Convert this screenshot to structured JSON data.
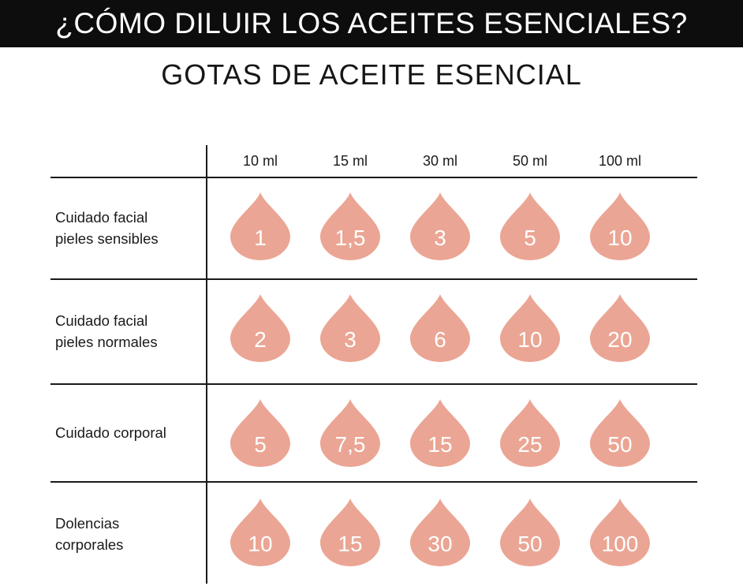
{
  "title": "¿CÓMO DILUIR LOS ACEITES ESENCIALES?",
  "subtitle": "GOTAS DE ACEITE ESENCIAL",
  "colors": {
    "drop": "#eba594",
    "header_bg": "#0d0d0d",
    "lines": "#1a1a1a"
  },
  "chart_data": {
    "type": "table",
    "columns": [
      "10 ml",
      "15 ml",
      "30 ml",
      "50 ml",
      "100 ml"
    ],
    "rows": [
      {
        "label_lines": [
          "Cuidado facial",
          "pieles sensibles"
        ],
        "values": [
          "1",
          "1,5",
          "3",
          "5",
          "10"
        ]
      },
      {
        "label_lines": [
          "Cuidado facial",
          "pieles normales"
        ],
        "values": [
          "2",
          "3",
          "6",
          "10",
          "20"
        ]
      },
      {
        "label_lines": [
          "Cuidado corporal"
        ],
        "values": [
          "5",
          "7,5",
          "15",
          "25",
          "50"
        ]
      },
      {
        "label_lines": [
          "Dolencias",
          "corporales"
        ],
        "values": [
          "10",
          "15",
          "30",
          "50",
          "100"
        ]
      }
    ]
  }
}
